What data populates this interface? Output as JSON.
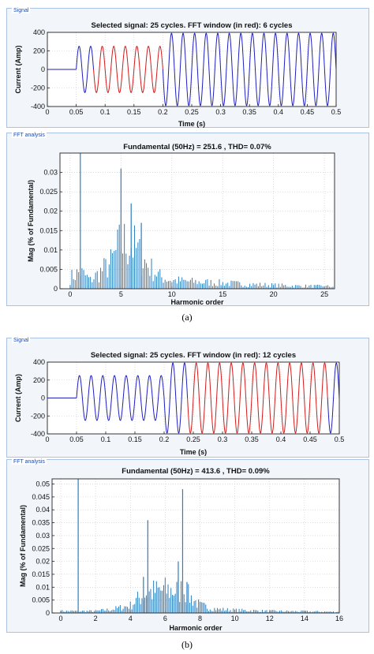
{
  "figure_a_label": "(a)",
  "figure_b_label": "(b)",
  "panels": {
    "signal": "Signal",
    "fft": "FFT analysis"
  },
  "chart_data": [
    {
      "id": "sigA",
      "type": "line",
      "title": "Selected signal: 25 cycles. FFT window (in red): 6 cycles",
      "xlabel": "Time (s)",
      "ylabel": "Current (Amp)",
      "xlim": [
        0,
        0.5
      ],
      "ylim": [
        -400,
        400
      ],
      "xticks": [
        0,
        0.05,
        0.1,
        0.15,
        0.2,
        0.25,
        0.3,
        0.35,
        0.4,
        0.45,
        0.5
      ],
      "yticks": [
        -400,
        -200,
        0,
        200,
        400
      ],
      "grid": true,
      "frequency_hz": 50,
      "segments": [
        {
          "from": 0,
          "to": 0.05,
          "amplitude": 0,
          "color": "#1f1fbf"
        },
        {
          "from": 0.05,
          "to": 0.08,
          "amplitude": 250,
          "color": "#1f1fbf"
        },
        {
          "from": 0.08,
          "to": 0.2,
          "amplitude": 250,
          "color": "#d21c1c"
        },
        {
          "from": 0.2,
          "to": 0.5,
          "amplitude": 390,
          "color": "#1f1fbf"
        }
      ]
    },
    {
      "id": "fftA",
      "type": "bar",
      "title": "Fundamental (50Hz) = 251.6 , THD= 0.07%",
      "xlabel": "Harmonic order",
      "ylabel": "Mag (% of Fundamental)",
      "xlim": [
        -1,
        26
      ],
      "ylim": [
        0,
        0.035
      ],
      "xticks": [
        0,
        5,
        10,
        15,
        20,
        25
      ],
      "yticks": [
        0,
        0.005,
        0.01,
        0.015,
        0.02,
        0.025,
        0.03
      ],
      "grid": true,
      "color": "#2a7fc0",
      "fundamental_order": 1,
      "peaks": [
        [
          5,
          0.031
        ],
        [
          6,
          0.022
        ],
        [
          7,
          0.017
        ]
      ],
      "envelope": [
        [
          0,
          0.004
        ],
        [
          1,
          0.006
        ],
        [
          2,
          0.003
        ],
        [
          3,
          0.006
        ],
        [
          4,
          0.009
        ],
        [
          5,
          0.016
        ],
        [
          6,
          0.016
        ],
        [
          7,
          0.011
        ],
        [
          8,
          0.007
        ],
        [
          9,
          0.004
        ],
        [
          10,
          0.003
        ],
        [
          12,
          0.0025
        ],
        [
          15,
          0.002
        ],
        [
          18,
          0.0015
        ],
        [
          22,
          0.001
        ],
        [
          26,
          0.0008
        ]
      ],
      "bin_step": 0.1667
    },
    {
      "id": "sigB",
      "type": "line",
      "title": "Selected signal: 25 cycles. FFT window (in red): 12 cycles",
      "xlabel": "Time (s)",
      "ylabel": "Current (Amp)",
      "xlim": [
        0,
        0.5
      ],
      "ylim": [
        -400,
        400
      ],
      "xticks": [
        0,
        0.05,
        0.1,
        0.15,
        0.2,
        0.25,
        0.3,
        0.35,
        0.4,
        0.45,
        0.5
      ],
      "yticks": [
        -400,
        -200,
        0,
        200,
        400
      ],
      "grid": true,
      "frequency_hz": 50,
      "segments": [
        {
          "from": 0,
          "to": 0.05,
          "amplitude": 0,
          "color": "#1f1fbf"
        },
        {
          "from": 0.05,
          "to": 0.2,
          "amplitude": 250,
          "color": "#1f1fbf"
        },
        {
          "from": 0.2,
          "to": 0.24,
          "amplitude": 390,
          "color": "#1f1fbf"
        },
        {
          "from": 0.24,
          "to": 0.48,
          "amplitude": 390,
          "color": "#d21c1c"
        },
        {
          "from": 0.48,
          "to": 0.5,
          "amplitude": 390,
          "color": "#1f1fbf"
        }
      ]
    },
    {
      "id": "fftB",
      "type": "bar",
      "title": "Fundamental (50Hz) = 413.6 , THD= 0.09%",
      "xlabel": "Harmonic order",
      "ylabel": "Mag (% of Fundamental)",
      "xlim": [
        -0.5,
        16
      ],
      "ylim": [
        0,
        0.052
      ],
      "xticks": [
        0,
        2,
        4,
        6,
        8,
        10,
        12,
        14,
        16
      ],
      "yticks": [
        0,
        0.005,
        0.01,
        0.015,
        0.02,
        0.025,
        0.03,
        0.035,
        0.04,
        0.045,
        0.05
      ],
      "grid": true,
      "color": "#2a7fc0",
      "fundamental_order": 1,
      "peaks": [
        [
          5,
          0.036
        ],
        [
          7,
          0.048
        ],
        [
          6.75,
          0.02
        ],
        [
          4.75,
          0.014
        ],
        [
          7.25,
          0.012
        ]
      ],
      "envelope": [
        [
          0,
          0.001
        ],
        [
          1,
          0.001
        ],
        [
          2,
          0.001
        ],
        [
          3,
          0.002
        ],
        [
          4,
          0.004
        ],
        [
          4.5,
          0.008
        ],
        [
          5,
          0.011
        ],
        [
          6,
          0.012
        ],
        [
          7,
          0.012
        ],
        [
          7.5,
          0.008
        ],
        [
          8,
          0.004
        ],
        [
          9,
          0.002
        ],
        [
          10,
          0.0015
        ],
        [
          12,
          0.001
        ],
        [
          16,
          0.0006
        ]
      ],
      "bin_step": 0.0833
    }
  ]
}
